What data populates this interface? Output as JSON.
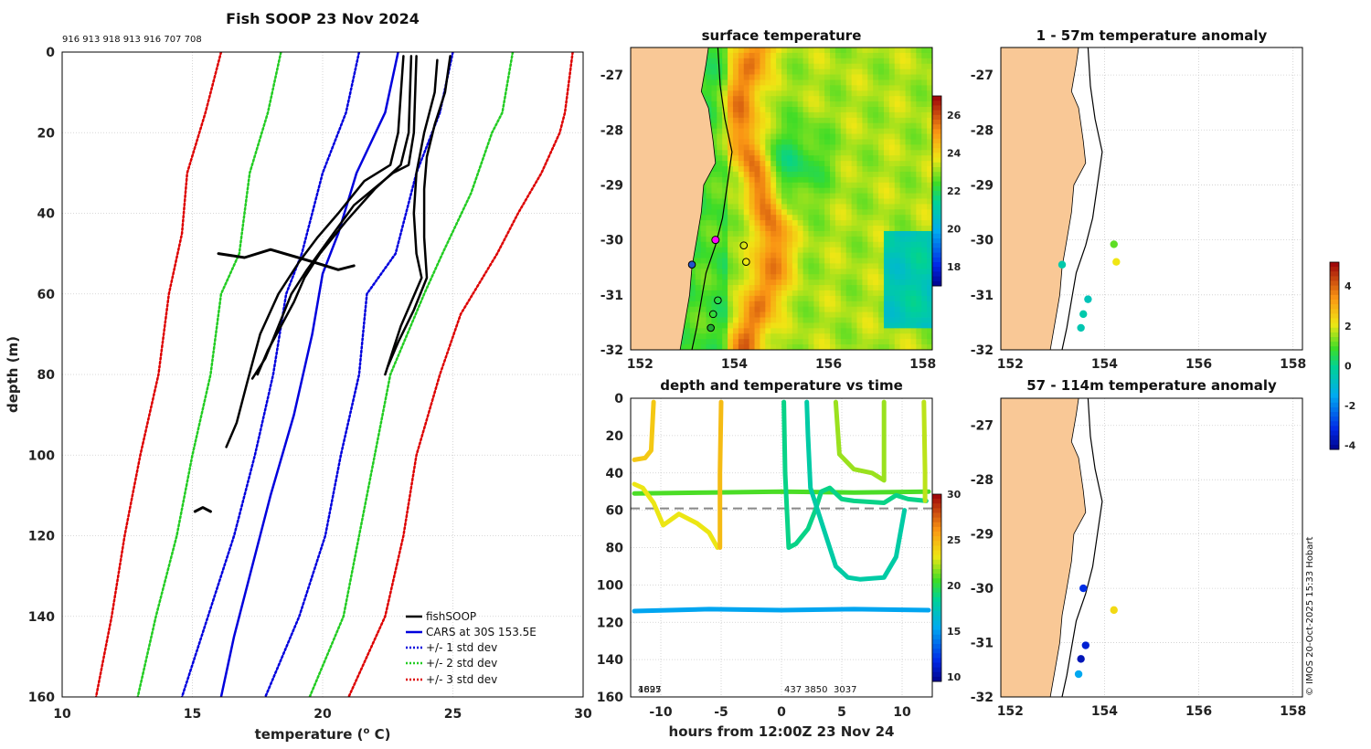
{
  "chart_data": [
    {
      "id": "profile",
      "type": "line",
      "title": "Fish SOOP 23 Nov 2024",
      "ids_text": "916 913 918 913 916 707 708",
      "xlabel": "temperature (",
      "xlabel_sup": "o",
      "xlabel_unit": " C)",
      "ylabel": "depth (m)",
      "xlim": [
        10,
        30
      ],
      "ylim": [
        0,
        160
      ],
      "xticks": [
        10,
        15,
        20,
        25,
        30
      ],
      "yticks": [
        0,
        20,
        40,
        60,
        80,
        100,
        120,
        140,
        160
      ],
      "series": [
        {
          "name": "fishSOOP",
          "color": "#000000",
          "style": "solid"
        },
        {
          "name": "CARS at 30S 153.5E",
          "color": "#0000dd",
          "style": "solid"
        },
        {
          "name": "+/- 1 std dev",
          "color": "#0000dd",
          "style": "dotted"
        },
        {
          "name": "+/- 2 std dev",
          "color": "#22cc22",
          "style": "dotted"
        },
        {
          "name": "+/- 3 std dev",
          "color": "#dd0000",
          "style": "dotted"
        }
      ],
      "cars_mean": [
        [
          22.9,
          0
        ],
        [
          22.4,
          15
        ],
        [
          21.3,
          30
        ],
        [
          20.6,
          45
        ],
        [
          20.0,
          55
        ],
        [
          19.6,
          70
        ],
        [
          18.9,
          90
        ],
        [
          18.0,
          110
        ],
        [
          17.2,
          130
        ],
        [
          16.6,
          145
        ],
        [
          16.1,
          160
        ]
      ],
      "std1": [
        [
          21.4,
          0
        ],
        [
          20.9,
          15
        ],
        [
          20.0,
          30
        ],
        [
          19.2,
          50
        ],
        [
          18.6,
          60
        ],
        [
          18.1,
          80
        ],
        [
          17.4,
          100
        ],
        [
          16.6,
          120
        ],
        [
          15.6,
          140
        ],
        [
          14.6,
          160
        ]
      ],
      "std1p": [
        [
          25.0,
          0
        ],
        [
          24.5,
          15
        ],
        [
          23.6,
          30
        ],
        [
          22.8,
          50
        ],
        [
          21.7,
          60
        ],
        [
          21.4,
          80
        ],
        [
          20.7,
          100
        ],
        [
          20.1,
          120
        ],
        [
          19.1,
          140
        ],
        [
          17.8,
          160
        ]
      ],
      "std2": [
        [
          18.4,
          0
        ],
        [
          17.9,
          15
        ],
        [
          17.2,
          30
        ],
        [
          16.8,
          50
        ],
        [
          16.1,
          60
        ],
        [
          15.7,
          80
        ],
        [
          15.0,
          100
        ],
        [
          14.4,
          120
        ],
        [
          13.6,
          140
        ],
        [
          12.9,
          160
        ]
      ],
      "std2p": [
        [
          27.3,
          0
        ],
        [
          26.9,
          15
        ],
        [
          26.5,
          20
        ],
        [
          25.7,
          35
        ],
        [
          24.6,
          50
        ],
        [
          23.9,
          60
        ],
        [
          22.6,
          80
        ],
        [
          22.0,
          100
        ],
        [
          21.4,
          120
        ],
        [
          20.8,
          140
        ],
        [
          19.5,
          160
        ]
      ],
      "std3": [
        [
          16.1,
          0
        ],
        [
          15.5,
          15
        ],
        [
          14.8,
          30
        ],
        [
          14.6,
          45
        ],
        [
          14.1,
          60
        ],
        [
          13.7,
          80
        ],
        [
          13.0,
          100
        ],
        [
          12.7,
          110
        ],
        [
          12.4,
          120
        ],
        [
          11.9,
          140
        ],
        [
          11.3,
          160
        ]
      ],
      "std3p": [
        [
          29.6,
          0
        ],
        [
          29.3,
          15
        ],
        [
          29.1,
          20
        ],
        [
          28.4,
          30
        ],
        [
          27.5,
          40
        ],
        [
          26.7,
          50
        ],
        [
          25.3,
          65
        ],
        [
          24.5,
          80
        ],
        [
          23.6,
          100
        ],
        [
          23.1,
          120
        ],
        [
          22.4,
          140
        ],
        [
          21.0,
          160
        ]
      ],
      "fish_profiles": [
        [
          [
            23.1,
            1
          ],
          [
            22.9,
            20
          ],
          [
            22.6,
            28
          ],
          [
            21.6,
            32
          ],
          [
            20.6,
            40
          ],
          [
            19.8,
            46
          ],
          [
            19.1,
            52
          ],
          [
            18.3,
            60
          ],
          [
            17.6,
            70
          ],
          [
            17.1,
            82
          ],
          [
            16.7,
            92
          ],
          [
            16.3,
            98
          ]
        ],
        [
          [
            23.4,
            1
          ],
          [
            23.3,
            20
          ],
          [
            23.0,
            28
          ],
          [
            22.0,
            34
          ],
          [
            20.9,
            42
          ],
          [
            19.9,
            50
          ],
          [
            19.3,
            56
          ],
          [
            18.9,
            62
          ],
          [
            18.4,
            68
          ],
          [
            17.9,
            74
          ],
          [
            17.5,
            80
          ]
        ],
        [
          [
            23.6,
            1
          ],
          [
            23.5,
            20
          ],
          [
            23.3,
            28
          ],
          [
            22.7,
            30
          ],
          [
            21.2,
            38
          ],
          [
            20.3,
            46
          ],
          [
            19.4,
            54
          ],
          [
            18.8,
            60
          ],
          [
            18.3,
            68
          ],
          [
            17.8,
            76
          ],
          [
            17.3,
            81
          ]
        ],
        [
          [
            24.4,
            2
          ],
          [
            24.3,
            10
          ],
          [
            23.9,
            20
          ],
          [
            23.6,
            30
          ],
          [
            23.5,
            40
          ],
          [
            23.6,
            50
          ],
          [
            23.8,
            56
          ],
          [
            23.4,
            62
          ],
          [
            23.0,
            68
          ],
          [
            22.7,
            74
          ],
          [
            22.4,
            80
          ]
        ],
        [
          [
            24.9,
            1
          ],
          [
            24.7,
            10
          ],
          [
            24.3,
            18
          ],
          [
            24.0,
            26
          ],
          [
            23.9,
            34
          ],
          [
            23.9,
            46
          ],
          [
            24.0,
            56
          ],
          [
            23.5,
            64
          ],
          [
            22.9,
            72
          ],
          [
            22.5,
            78
          ]
        ]
      ],
      "fish_fragments": [
        [
          [
            16.0,
            50
          ],
          [
            17.0,
            51
          ],
          [
            18.0,
            49
          ],
          [
            19.6,
            52
          ],
          [
            20.6,
            54
          ],
          [
            21.2,
            53
          ]
        ],
        [
          [
            15.1,
            114
          ],
          [
            15.4,
            113
          ],
          [
            15.7,
            114
          ]
        ]
      ]
    },
    {
      "id": "sst",
      "type": "heatmap",
      "title": "surface temperature",
      "xlim": [
        151.8,
        158.2
      ],
      "ylim": [
        -32,
        -26.5
      ],
      "xticks": [
        152,
        154,
        156,
        158
      ],
      "yticks": [
        -27,
        -28,
        -29,
        -30,
        -31,
        -32
      ],
      "colorbar_range": [
        17,
        27
      ],
      "colorbar_ticks": [
        18,
        20,
        22,
        24,
        26
      ],
      "stations": [
        [
          153.6,
          -30.0
        ],
        [
          153.1,
          -30.45
        ],
        [
          154.2,
          -30.1
        ],
        [
          154.25,
          -30.4
        ],
        [
          153.65,
          -31.1
        ],
        [
          153.55,
          -31.35
        ],
        [
          153.5,
          -31.6
        ]
      ]
    },
    {
      "id": "time_depth",
      "type": "scatter",
      "title": "depth and temperature vs time",
      "xlabel": "hours from 12:00Z 23 Nov 24",
      "xlim": [
        -12.5,
        12.5
      ],
      "ylim": [
        0,
        160
      ],
      "xticks": [
        -10,
        -5,
        0,
        5,
        10
      ],
      "yticks": [
        0,
        20,
        40,
        60,
        80,
        100,
        120,
        140,
        160
      ],
      "colorbar_range": [
        9.5,
        30
      ],
      "colorbar_ticks": [
        10,
        15,
        20,
        25,
        30
      ],
      "reference_depth": 59,
      "bottom_ids": [
        "4697",
        "1825",
        "437",
        "3850",
        "3037"
      ]
    },
    {
      "id": "anom_shallow",
      "type": "scatter",
      "title": "1 - 57m temperature anomaly",
      "xlim": [
        151.8,
        158.2
      ],
      "ylim": [
        -32,
        -26.5
      ],
      "xticks": [
        152,
        154,
        156,
        158
      ],
      "yticks": [
        -27,
        -28,
        -29,
        -30,
        -31,
        -32
      ],
      "points": [
        [
          154.2,
          -30.08,
          1.2
        ],
        [
          154.25,
          -30.4,
          2.2
        ],
        [
          153.1,
          -30.45,
          -0.3
        ],
        [
          153.65,
          -31.08,
          -0.5
        ],
        [
          153.55,
          -31.35,
          -0.3
        ],
        [
          153.5,
          -31.6,
          -0.4
        ]
      ]
    },
    {
      "id": "anom_deep",
      "type": "scatter",
      "title": "57 - 114m temperature anomaly",
      "xlim": [
        151.8,
        158.2
      ],
      "ylim": [
        -32,
        -26.5
      ],
      "xticks": [
        152,
        154,
        156,
        158
      ],
      "yticks": [
        -27,
        -28,
        -29,
        -30,
        -31,
        -32
      ],
      "points": [
        [
          153.55,
          -30.0,
          -3.0
        ],
        [
          154.2,
          -30.4,
          2.4
        ],
        [
          153.6,
          -31.05,
          -3.3
        ],
        [
          153.5,
          -31.3,
          -3.6
        ],
        [
          153.45,
          -31.58,
          -1.4
        ]
      ],
      "colorbar_range": [
        -4.2,
        5.2
      ],
      "colorbar_ticks": [
        -4,
        -2,
        0,
        2,
        4
      ]
    }
  ],
  "legend_labels": [
    "fishSOOP",
    "CARS at 30S 153.5E",
    "+/- 1 std dev",
    "+/- 2 std dev",
    "+/- 3 std dev"
  ],
  "footer": "© IMOS 20-Oct-2025 15:33 Hobart"
}
